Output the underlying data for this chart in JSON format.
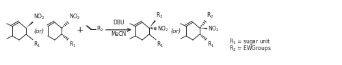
{
  "background_color": "#ffffff",
  "text_color": "#1a1a1a",
  "line_color": "#1a1a1a",
  "font_size": 5.5,
  "label_r1": "R$_1$ = sugar unit",
  "label_r2": "R$_2$ = EWGroups",
  "arrow_label_top": "DBU",
  "arrow_label_bottom": "MeCN",
  "or_text": "(or)",
  "plus_text": "+"
}
